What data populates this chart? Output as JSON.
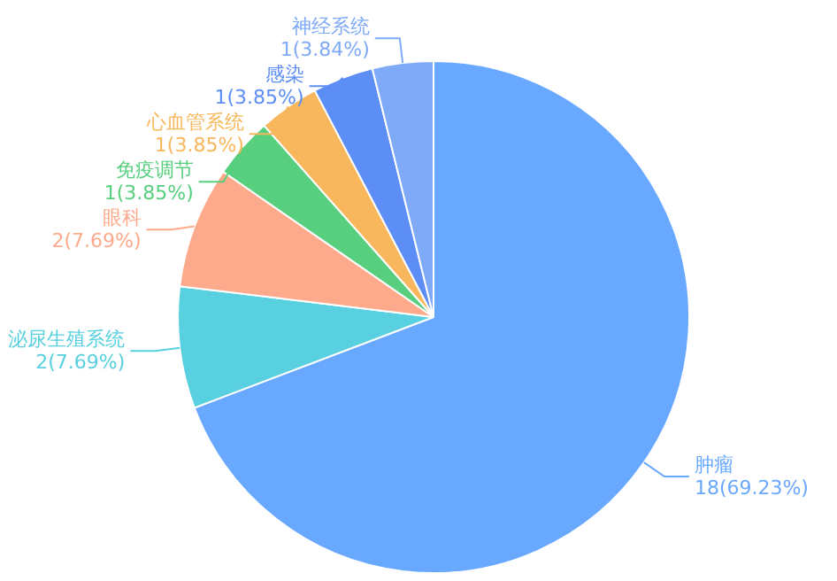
{
  "chart_data": {
    "type": "pie",
    "categories": [
      "肿瘤",
      "泌尿生殖系统",
      "眼科",
      "免疫调节",
      "心血管系统",
      "感染",
      "神经系统"
    ],
    "values": [
      18,
      2,
      2,
      1,
      1,
      1,
      1
    ],
    "value_labels": [
      "18(69.23%)",
      "2(7.69%)",
      "2(7.69%)",
      "1(3.85%)",
      "1(3.85%)",
      "1(3.85%)",
      "1(3.84%)"
    ],
    "colors": [
      "#69a8ff",
      "#58d0df",
      "#fdaa8c",
      "#58cf7f",
      "#f8b75c",
      "#5d8ef5",
      "#7faaf8"
    ],
    "legend": false
  }
}
